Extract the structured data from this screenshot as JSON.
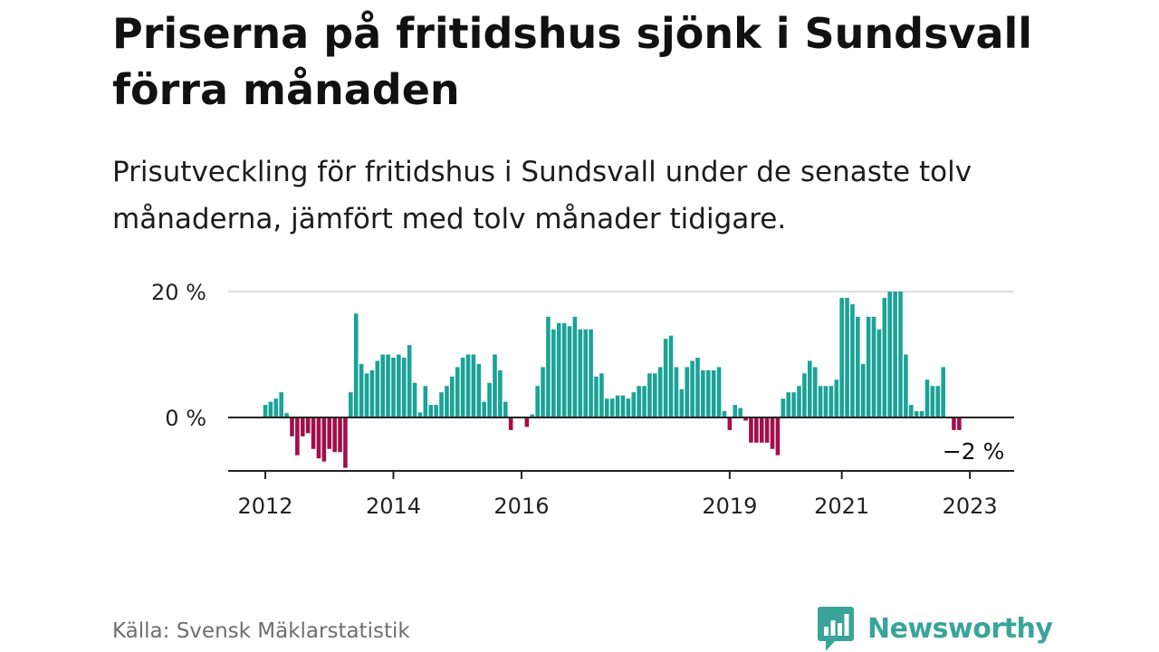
{
  "header": {
    "title": "Priserna på fritidshus sjönk i Sundsvall förra månaden",
    "subtitle": "Prisutveckling för fritidshus i Sundsvall under de senaste tolv månaderna, jämfört med tolv månader tidigare."
  },
  "footer": {
    "source": "Källa: Svensk Mäklarstatistik",
    "brand": "Newsworthy"
  },
  "colors": {
    "positive": "#1aa397",
    "negative": "#a0104a",
    "gridline": "#dddddd",
    "axis": "#222222",
    "brand": "#3aa49a"
  },
  "chart_data": {
    "type": "bar",
    "ylim": [
      -8.5,
      20
    ],
    "y_ticks": [
      {
        "value": 20,
        "label": "20 %"
      },
      {
        "value": 0,
        "label": "0 %"
      }
    ],
    "x_ticks": [
      {
        "month": "2012-01",
        "label": "2012"
      },
      {
        "month": "2014-01",
        "label": "2014"
      },
      {
        "month": "2016-01",
        "label": "2016"
      },
      {
        "month": "2019-04",
        "label": "2019"
      },
      {
        "month": "2021-01",
        "label": "2021"
      },
      {
        "month": "2023-01",
        "label": "2023"
      }
    ],
    "annotation": {
      "month": "2023-01",
      "label": "−2 %"
    },
    "grid": true,
    "start_month": "2012-01",
    "values": [
      2,
      2.5,
      3,
      4,
      0.7,
      -3,
      -6,
      -3,
      -2.5,
      -5,
      -6.5,
      -7,
      -5,
      -5.5,
      -5.5,
      -8,
      4,
      16.5,
      8.5,
      7,
      7.5,
      9,
      10,
      10,
      9.5,
      10,
      9.5,
      11.5,
      5.5,
      0.8,
      5,
      2,
      2,
      4,
      5,
      6.5,
      8,
      9.5,
      10,
      10,
      8.5,
      2.5,
      5.5,
      10,
      7.5,
      2.5,
      -2,
      0,
      0,
      -1.5,
      0.5,
      5,
      8,
      16,
      14,
      15,
      15,
      14.5,
      16,
      14,
      14,
      14,
      6.5,
      7,
      3,
      3,
      3.5,
      3.5,
      3,
      4,
      5,
      5,
      7,
      7,
      8,
      12.5,
      13,
      8,
      4.5,
      8,
      9,
      9.5,
      7.5,
      7.5,
      7.5,
      8,
      1,
      -2,
      2,
      1.5,
      -0.5,
      -4,
      -4,
      -4,
      -4,
      -5,
      -6,
      3,
      4,
      4,
      5,
      7,
      9,
      8,
      5,
      5,
      5,
      6,
      19,
      19,
      18,
      16,
      8.5,
      16,
      16,
      14,
      19,
      20,
      20,
      20,
      10,
      2,
      1,
      1,
      6,
      5,
      5,
      8,
      0,
      -2,
      -2
    ]
  }
}
